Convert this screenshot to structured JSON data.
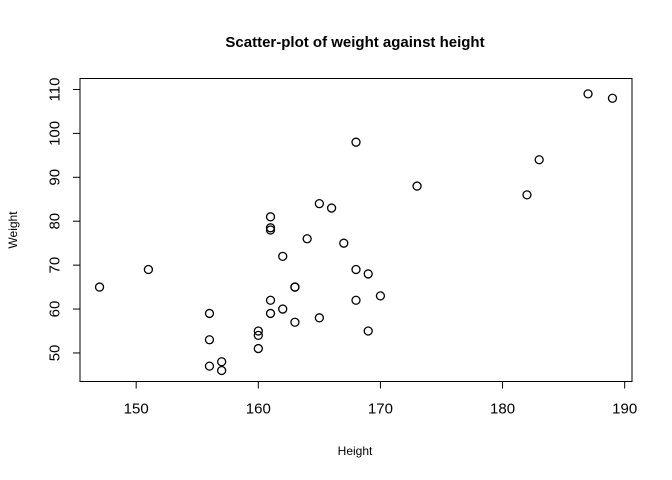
{
  "chart_data": {
    "type": "scatter",
    "title": "Scatter-plot of weight against height",
    "xlabel": "Height",
    "ylabel": "Weight",
    "xlim": [
      145.4,
      190.6
    ],
    "ylim": [
      43.5,
      112.5
    ],
    "xticks": [
      150,
      160,
      170,
      180,
      190
    ],
    "yticks": [
      50,
      60,
      70,
      80,
      90,
      100,
      110
    ],
    "grid": false,
    "marker": "open-circle",
    "point_color": "#000000",
    "points": [
      {
        "x": 147,
        "y": 65
      },
      {
        "x": 151,
        "y": 69
      },
      {
        "x": 156,
        "y": 59
      },
      {
        "x": 156,
        "y": 53
      },
      {
        "x": 156,
        "y": 47
      },
      {
        "x": 157,
        "y": 48
      },
      {
        "x": 157,
        "y": 46
      },
      {
        "x": 160,
        "y": 55
      },
      {
        "x": 160,
        "y": 54
      },
      {
        "x": 160,
        "y": 51
      },
      {
        "x": 161,
        "y": 81
      },
      {
        "x": 161,
        "y": 78.5
      },
      {
        "x": 161,
        "y": 78
      },
      {
        "x": 161,
        "y": 62
      },
      {
        "x": 161,
        "y": 59
      },
      {
        "x": 162,
        "y": 72
      },
      {
        "x": 162,
        "y": 60
      },
      {
        "x": 163,
        "y": 65
      },
      {
        "x": 163,
        "y": 65
      },
      {
        "x": 163,
        "y": 57
      },
      {
        "x": 164,
        "y": 76
      },
      {
        "x": 165,
        "y": 84
      },
      {
        "x": 165,
        "y": 58
      },
      {
        "x": 166,
        "y": 83
      },
      {
        "x": 167,
        "y": 75
      },
      {
        "x": 168,
        "y": 98
      },
      {
        "x": 168,
        "y": 69
      },
      {
        "x": 168,
        "y": 62
      },
      {
        "x": 169,
        "y": 68
      },
      {
        "x": 169,
        "y": 55
      },
      {
        "x": 170,
        "y": 63
      },
      {
        "x": 173,
        "y": 88
      },
      {
        "x": 182,
        "y": 86
      },
      {
        "x": 183,
        "y": 94
      },
      {
        "x": 187,
        "y": 109
      },
      {
        "x": 189,
        "y": 108
      }
    ]
  }
}
